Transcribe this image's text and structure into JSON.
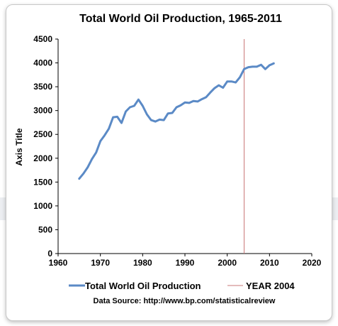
{
  "chart_data": {
    "type": "line",
    "title": "Total World Oil Production, 1965-2011",
    "xlabel": "",
    "ylabel": "Axis Title",
    "xlim": [
      1960,
      2020
    ],
    "ylim": [
      0,
      4500
    ],
    "x_ticks": [
      1960,
      1970,
      1980,
      1990,
      2000,
      2010,
      2020
    ],
    "y_ticks": [
      0,
      500,
      1000,
      1500,
      2000,
      2500,
      3000,
      3500,
      4000,
      4500
    ],
    "grid": false,
    "legend_position": "bottom",
    "series": [
      {
        "name": "Total World Oil Production",
        "color": "#5b8ac6",
        "x": [
          1965,
          1966,
          1967,
          1968,
          1969,
          1970,
          1971,
          1972,
          1973,
          1974,
          1975,
          1976,
          1977,
          1978,
          1979,
          1980,
          1981,
          1982,
          1983,
          1984,
          1985,
          1986,
          1987,
          1988,
          1989,
          1990,
          1991,
          1992,
          1993,
          1994,
          1995,
          1996,
          1997,
          1998,
          1999,
          2000,
          2001,
          2002,
          2003,
          2004,
          2005,
          2006,
          2007,
          2008,
          2009,
          2010,
          2011
        ],
        "y": [
          1570,
          1680,
          1810,
          1980,
          2120,
          2360,
          2480,
          2620,
          2860,
          2870,
          2740,
          2980,
          3070,
          3100,
          3230,
          3100,
          2920,
          2800,
          2770,
          2810,
          2800,
          2940,
          2950,
          3070,
          3110,
          3170,
          3160,
          3200,
          3190,
          3240,
          3280,
          3380,
          3470,
          3530,
          3480,
          3610,
          3610,
          3590,
          3700,
          3870,
          3910,
          3920,
          3920,
          3960,
          3870,
          3950,
          3990
        ]
      }
    ],
    "reference_lines": [
      {
        "name": "YEAR 2004",
        "x": 2004,
        "color": "#c87878"
      }
    ],
    "source_note": "Data Source: http://www.bp.com/statisticalreview"
  }
}
